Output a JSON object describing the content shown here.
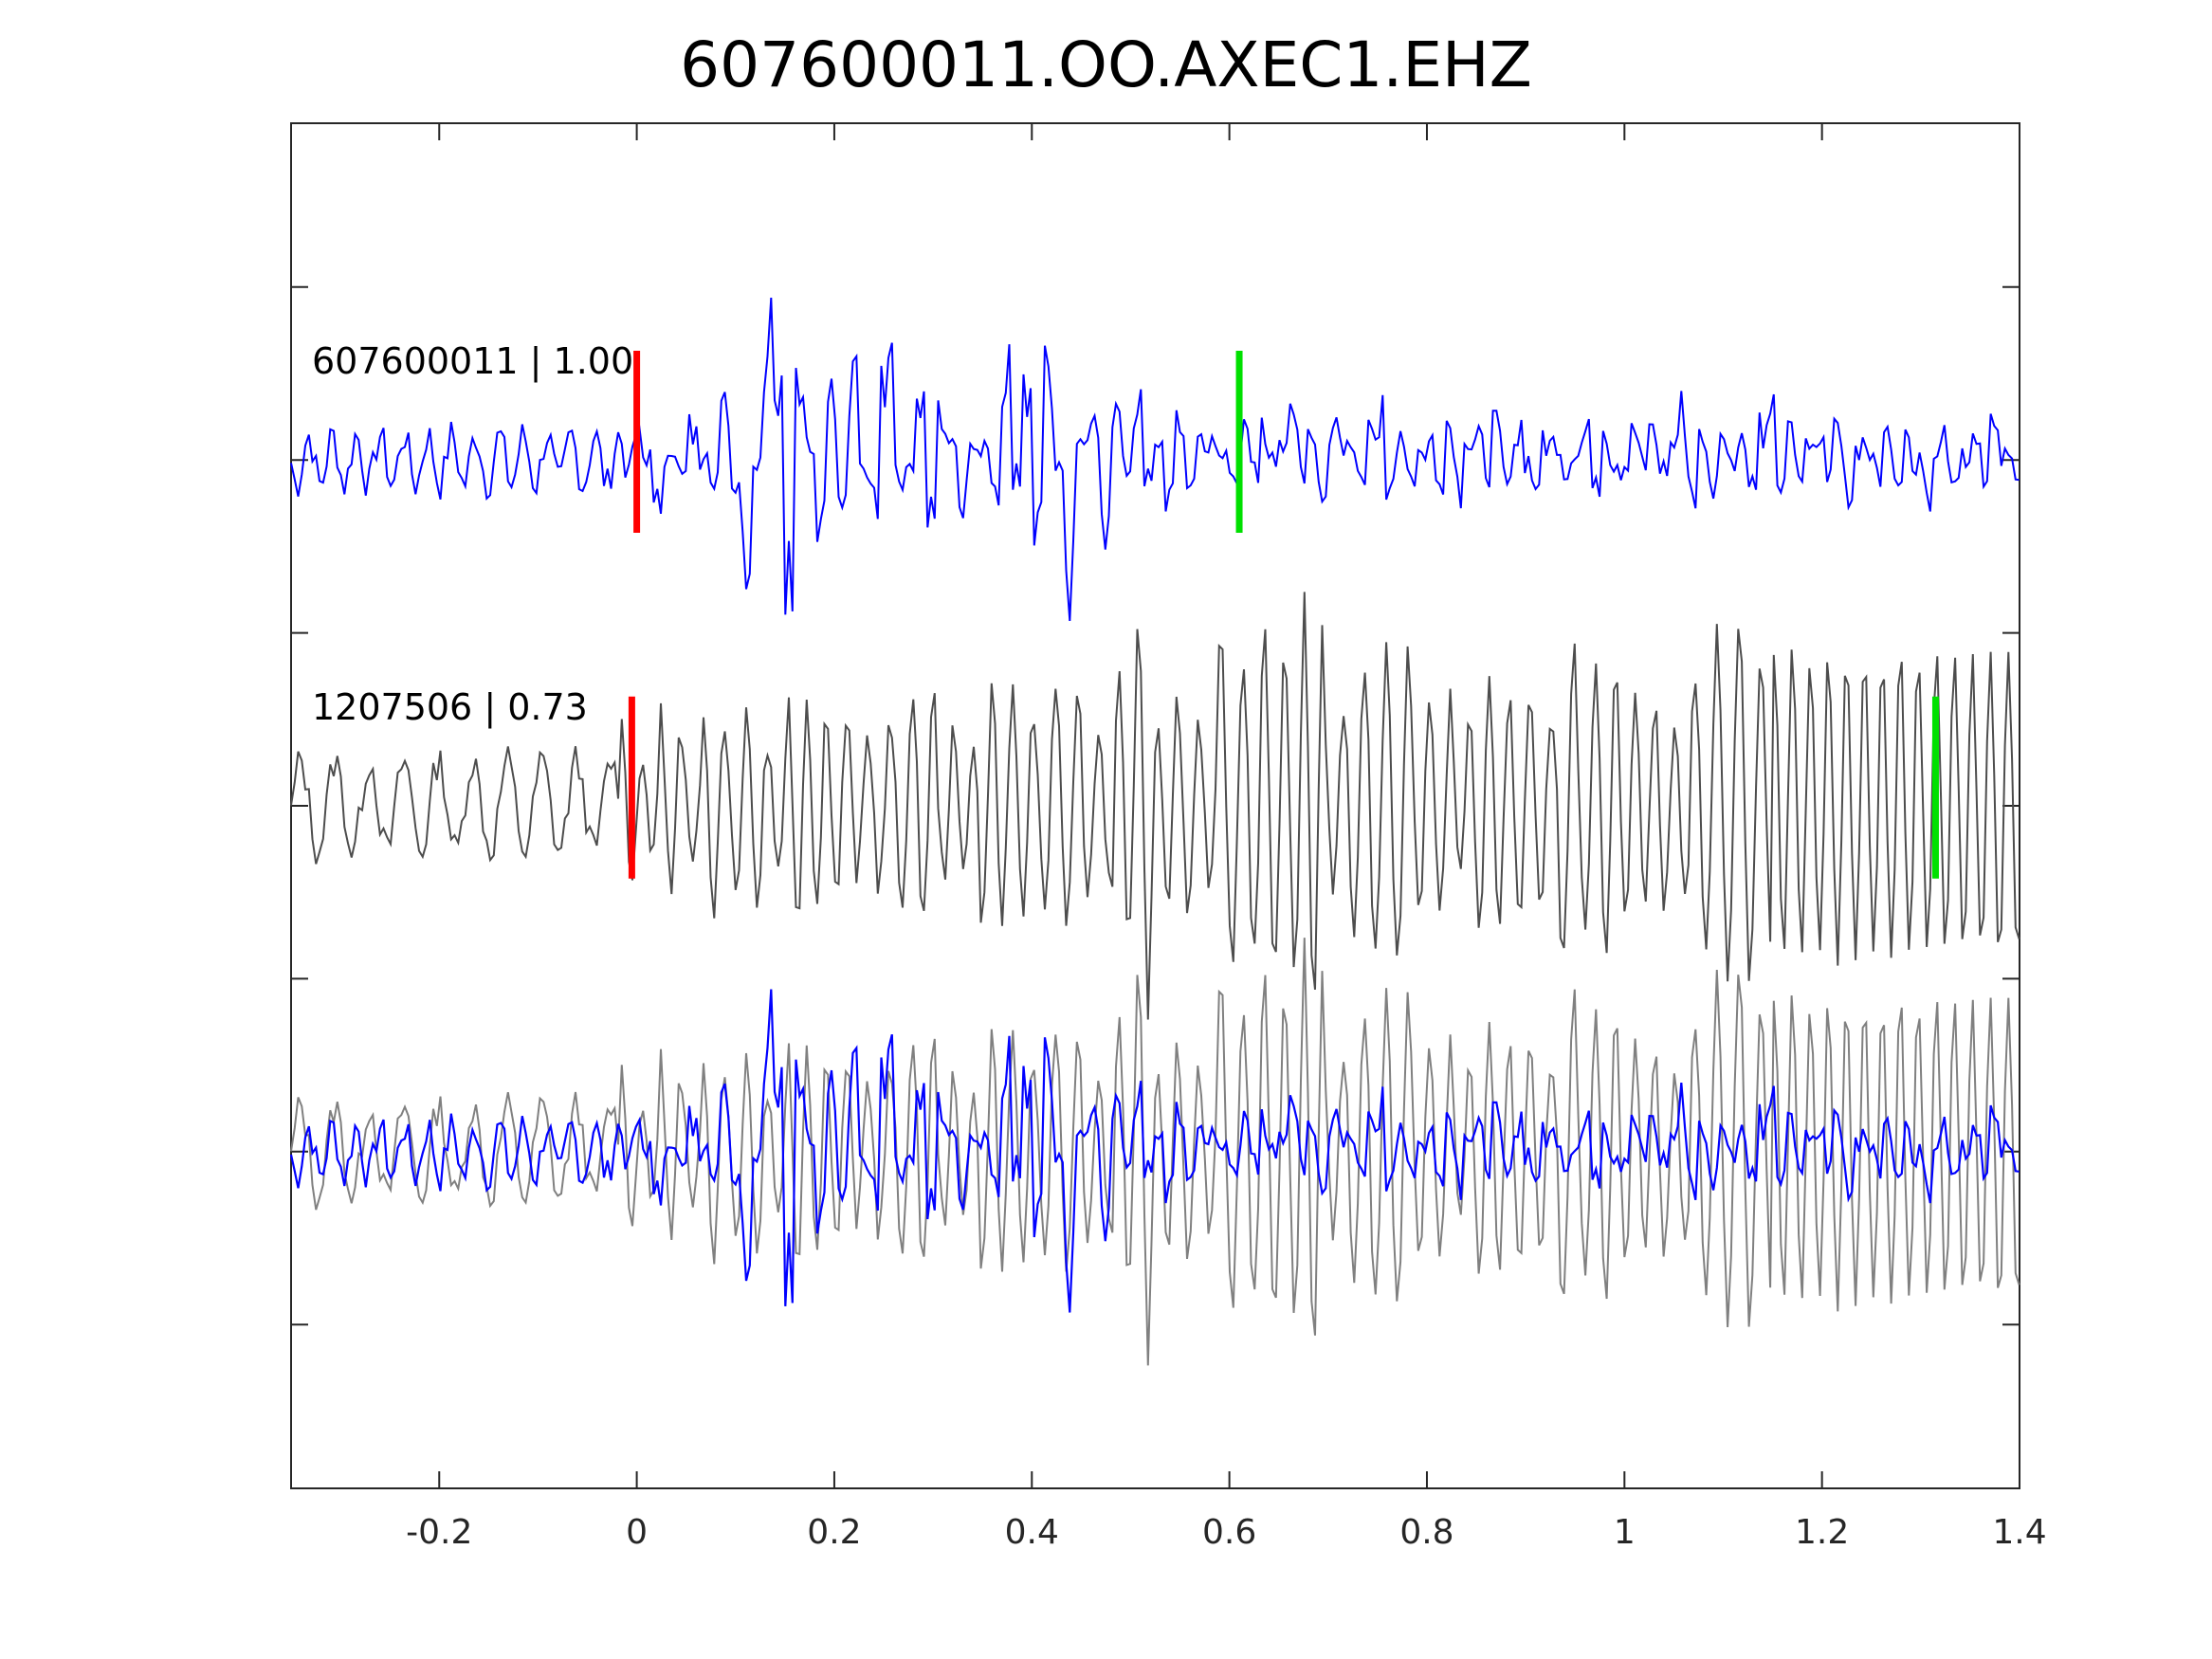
{
  "chart_data": {
    "type": "line",
    "title": "607600011.OO.AXEC1.EHZ",
    "xlabel": "",
    "ylabel": "",
    "xlim": [
      -0.35,
      1.4
    ],
    "x_ticks": [
      -0.2,
      0,
      0.2,
      0.4,
      0.6,
      0.8,
      1,
      1.2,
      1.4
    ],
    "x_tick_labels": [
      "-0.2",
      "0",
      "0.2",
      "0.4",
      "0.6",
      "0.8",
      "1",
      "1.2",
      "1.4"
    ],
    "y_tick_count": 7,
    "grid": false,
    "colors": {
      "template": "#0000ff",
      "detection": "#4d4d4d",
      "overlay_detection": "#808080",
      "p_pick": "#ff0000",
      "s_pick": "#00e000",
      "axes": "#262626"
    },
    "traces": [
      {
        "label": "607600011 | 1.00",
        "offset": 2,
        "p_pick_time": 0.0,
        "s_pick_time": 0.61,
        "amplitude": [
          0.3,
          0.05,
          -0.6,
          0.0,
          -0.2,
          0.6,
          0.0,
          -0.3,
          0.8,
          -0.3,
          -1.4,
          0.0,
          1.7,
          1.0,
          -2.0,
          1.0,
          0.2,
          -0.8,
          0.9,
          -0.5,
          1.1,
          -0.1,
          -0.6,
          1.2,
          -0.3,
          -0.2,
          0.8,
          -0.8,
          0.5,
          0.2,
          -0.6,
          0.2,
          0.1,
          -0.4,
          1.2,
          -0.3,
          1.1,
          -0.9,
          1.2,
          -0.1,
          -1.6,
          0.3,
          0.5,
          -0.8,
          0.6,
          -0.1,
          0.8,
          -0.3,
          0.3,
          -0.5,
          0.5,
          -0.4,
          0.2,
          0.3,
          0.0,
          -0.2
        ],
        "s_segment": [
          0.3,
          -0.2,
          0.4,
          -0.1,
          0.3,
          0.6,
          -0.4,
          0.3,
          -0.3,
          0.4,
          0.1,
          0.2,
          -0.3,
          0.5,
          0.6,
          -0.5,
          0.3,
          -0.2,
          0.1,
          0.2,
          -0.3,
          0.4,
          -0.4,
          0.3,
          0.2,
          -0.2,
          0.4,
          -0.3,
          0.5,
          0.0,
          -0.4,
          0.3,
          0.2,
          -0.2,
          0.1,
          0.3,
          -0.3,
          0.4,
          0.0,
          -0.1
        ]
      },
      {
        "label": "1207506 | 0.73",
        "offset": 0,
        "p_pick_time": -0.005,
        "s_pick_time": 1.315,
        "amplitude": [
          0.3,
          0.0,
          -0.4,
          0.0,
          0.5,
          -0.3,
          0.5,
          0.1,
          0.6,
          -0.5,
          0.4,
          -0.2,
          0.3,
          0.5,
          -0.6,
          0.2,
          0.1,
          0.7,
          -0.6,
          0.4,
          -0.8,
          0.6,
          -0.3,
          0.9,
          -1.5,
          0.4,
          0.6,
          -0.4,
          1.2,
          -1.0,
          1.2,
          -1.2,
          1.6,
          -0.4,
          0.8,
          -1.0,
          1.1,
          -0.7,
          0.6,
          -0.3,
          0.9,
          -0.6,
          0.7,
          -0.4,
          1.1,
          -0.8,
          0.9,
          -0.6,
          0.6,
          -0.3,
          0.8,
          -1.2,
          1.3,
          -0.9
        ],
        "high_freq_tail": true
      },
      {
        "label": "",
        "offset": -2,
        "overlay_of": [
          0,
          1
        ]
      }
    ]
  }
}
